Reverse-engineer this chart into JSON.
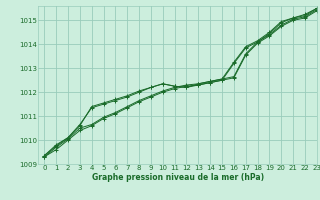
{
  "xlabel": "Graphe pression niveau de la mer (hPa)",
  "bg_color": "#cceedd",
  "grid_color": "#99ccbb",
  "line_color": "#1a6b2a",
  "xlim": [
    -0.5,
    23
  ],
  "ylim": [
    1009,
    1015.6
  ],
  "yticks": [
    1009,
    1010,
    1011,
    1012,
    1013,
    1014,
    1015
  ],
  "xticks": [
    0,
    1,
    2,
    3,
    4,
    5,
    6,
    7,
    8,
    9,
    10,
    11,
    12,
    13,
    14,
    15,
    16,
    17,
    18,
    19,
    20,
    21,
    22,
    23
  ],
  "series": [
    [
      1009.3,
      1009.6,
      1010.0,
      1010.4,
      1010.6,
      1010.9,
      1011.1,
      1011.35,
      1011.6,
      1011.8,
      1012.0,
      1012.15,
      1012.25,
      1012.3,
      1012.4,
      1012.5,
      1012.6,
      1013.55,
      1014.05,
      1014.35,
      1014.75,
      1015.0,
      1015.1,
      1015.4
    ],
    [
      1009.3,
      1009.7,
      1010.05,
      1010.5,
      1010.65,
      1010.95,
      1011.15,
      1011.4,
      1011.65,
      1011.85,
      1012.05,
      1012.2,
      1012.3,
      1012.35,
      1012.45,
      1012.55,
      1012.65,
      1013.6,
      1014.1,
      1014.4,
      1014.8,
      1015.05,
      1015.15,
      1015.45
    ],
    [
      1009.35,
      1009.75,
      1010.1,
      1010.6,
      1011.4,
      1011.55,
      1011.7,
      1011.85,
      1012.05,
      1012.2,
      1012.35,
      1012.25,
      1012.2,
      1012.3,
      1012.4,
      1012.5,
      1013.2,
      1013.85,
      1014.1,
      1014.45,
      1014.9,
      1015.1,
      1015.2,
      1015.5
    ],
    [
      1009.35,
      1009.8,
      1010.1,
      1010.65,
      1011.35,
      1011.5,
      1011.65,
      1011.8,
      1012.0,
      1012.2,
      1012.35,
      1012.25,
      1012.2,
      1012.35,
      1012.45,
      1012.55,
      1013.25,
      1013.9,
      1014.15,
      1014.5,
      1014.95,
      1015.1,
      1015.25,
      1015.5
    ]
  ]
}
